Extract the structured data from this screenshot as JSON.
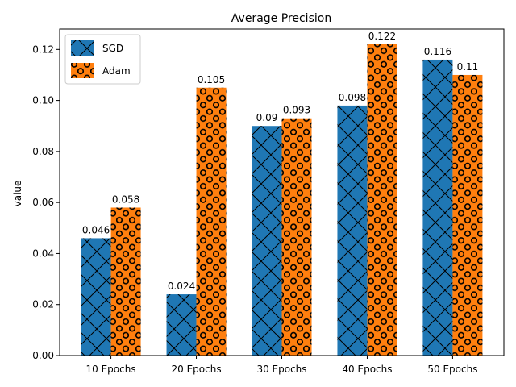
{
  "chart_data": {
    "type": "bar",
    "title": "Average Precision",
    "xlabel": "",
    "ylabel": "value",
    "categories": [
      "10 Epochs",
      "20 Epochs",
      "30 Epochs",
      "40 Epochs",
      "50 Epochs"
    ],
    "series": [
      {
        "name": "SGD",
        "values": [
          0.046,
          0.024,
          0.09,
          0.098,
          0.116
        ],
        "labels": [
          "0.046",
          "0.024",
          "0.09",
          "0.098",
          "0.116"
        ],
        "color": "#1f77b4",
        "hatch": "x"
      },
      {
        "name": "Adam",
        "values": [
          0.058,
          0.105,
          0.093,
          0.122,
          0.11
        ],
        "labels": [
          "0.058",
          "0.105",
          "0.093",
          "0.122",
          "0.11"
        ],
        "color": "#ff7f0e",
        "hatch": "o"
      }
    ],
    "ylim": [
      0,
      0.128
    ],
    "yticks": [
      "0.00",
      "0.02",
      "0.04",
      "0.06",
      "0.08",
      "0.10",
      "0.12"
    ],
    "grid": false,
    "legend": "top-left"
  }
}
